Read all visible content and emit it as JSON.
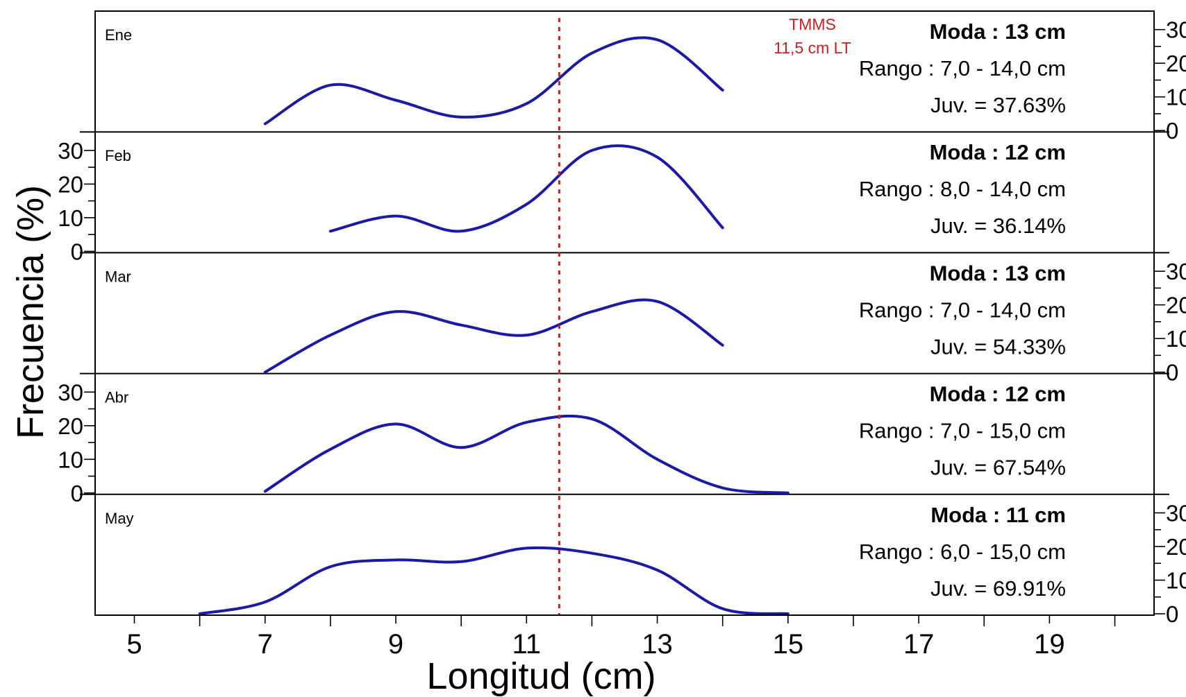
{
  "chart_data": {
    "type": "line",
    "xlabel": "Longitud (cm)",
    "ylabel": "Frecuencia (%)",
    "xlim": [
      4.4,
      20.6
    ],
    "xticks_major": [
      5,
      7,
      9,
      11,
      13,
      15,
      17,
      19
    ],
    "xticks_minor": [
      6,
      8,
      10,
      12,
      14,
      16,
      18,
      20
    ],
    "ylim": [
      0,
      35
    ],
    "yticks": [
      "0",
      "10",
      "20",
      "30"
    ],
    "reference_line": {
      "x": 11.5,
      "label_line1": "TMMS",
      "label_line2": "11,5 cm LT",
      "color": "#cc2020"
    },
    "line_color": "#1a1aa6",
    "panels": [
      {
        "month": "Ene",
        "axis_side": "right",
        "moda": "Moda : 13 cm",
        "rango": "Rango : 7,0 - 14,0 cm",
        "juv": "Juv. = 37.63%",
        "x": [
          7,
          8,
          9,
          10,
          11,
          12,
          13,
          14
        ],
        "y": [
          2,
          13.5,
          9,
          4,
          8,
          23,
          27,
          12
        ]
      },
      {
        "month": "Feb",
        "axis_side": "left",
        "moda": "Moda : 12 cm",
        "rango": "Rango : 8,0 - 14,0 cm",
        "juv": "Juv. = 36.14%",
        "x": [
          8,
          9,
          10,
          11,
          12,
          13,
          14
        ],
        "y": [
          6,
          10.5,
          6,
          14,
          30,
          28,
          7
        ]
      },
      {
        "month": "Mar",
        "axis_side": "right",
        "moda": "Moda : 13 cm",
        "rango": "Rango : 7,0 - 14,0 cm",
        "juv": "Juv. = 54.33%",
        "x": [
          7,
          8,
          9,
          10,
          11,
          12,
          13,
          14
        ],
        "y": [
          0,
          11,
          18,
          14,
          11,
          18,
          21,
          8
        ]
      },
      {
        "month": "Abr",
        "axis_side": "left",
        "moda": "Moda : 12 cm",
        "rango": "Rango : 7,0 - 15,0 cm",
        "juv": "Juv. = 67.54%",
        "x": [
          7,
          8,
          9,
          10,
          11,
          12,
          13,
          14,
          15
        ],
        "y": [
          0.5,
          13,
          20.5,
          13.5,
          21,
          22,
          10,
          1.5,
          0
        ]
      },
      {
        "month": "May",
        "axis_side": "right",
        "moda": "Moda : 11 cm",
        "rango": "Rango : 6,0 - 15,0 cm",
        "juv": "Juv. = 69.91%",
        "x": [
          6,
          7,
          8,
          9,
          10,
          11,
          12,
          13,
          14,
          15
        ],
        "y": [
          0,
          3.5,
          14,
          16,
          15.5,
          19.5,
          18,
          13,
          1.5,
          0
        ]
      }
    ]
  }
}
